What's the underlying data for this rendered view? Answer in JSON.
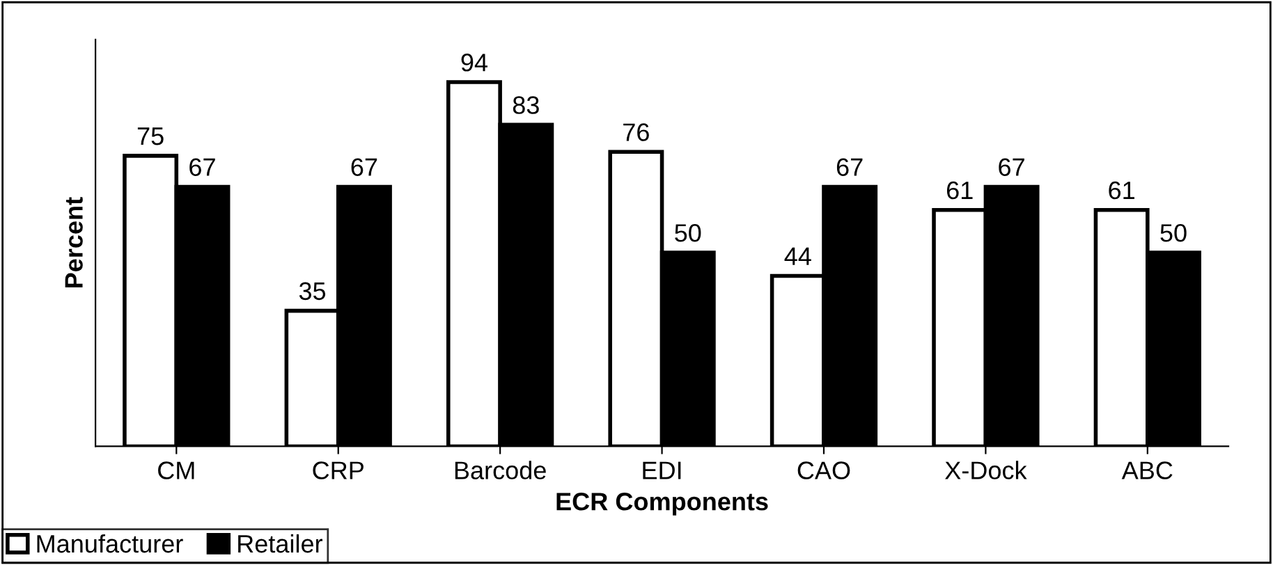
{
  "chart_data": {
    "type": "bar",
    "xlabel": "ECR Components",
    "ylabel": "Percent",
    "categories": [
      "CM",
      "CRP",
      "Barcode",
      "EDI",
      "CAO",
      "X-Dock",
      "ABC"
    ],
    "series": [
      {
        "name": "Manufacturer",
        "color": "#ffffff",
        "values": [
          75,
          35,
          94,
          76,
          44,
          61,
          61
        ]
      },
      {
        "name": "Retailer",
        "color": "#000000",
        "values": [
          67,
          67,
          83,
          50,
          67,
          67,
          50
        ]
      }
    ],
    "ylim": [
      0,
      105
    ],
    "tick_labels": "x",
    "data_labels": true,
    "legend": "bottom left",
    "grid": false
  }
}
